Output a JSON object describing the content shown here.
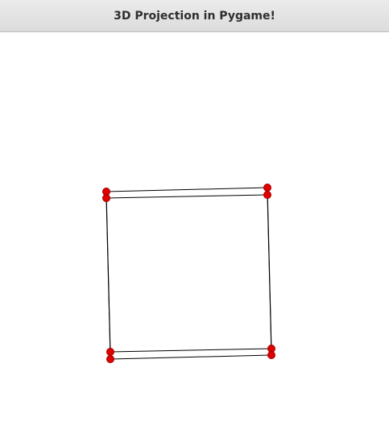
{
  "window": {
    "title": "3D Projection in Pygame!"
  },
  "scene": {
    "background_color": "#ffffff",
    "edge_color": "#000000",
    "vertex_color": "#e00000",
    "vertex_stroke_color": "#a00000",
    "vertices": [
      {
        "name": "v0"
      },
      {
        "name": "v1"
      },
      {
        "name": "v2"
      },
      {
        "name": "v3"
      },
      {
        "name": "v4"
      },
      {
        "name": "v5"
      },
      {
        "name": "v6"
      },
      {
        "name": "v7"
      }
    ],
    "edges": [
      [
        0,
        1
      ],
      [
        1,
        2
      ],
      [
        2,
        3
      ],
      [
        3,
        0
      ],
      [
        4,
        5
      ],
      [
        5,
        6
      ],
      [
        6,
        7
      ],
      [
        7,
        4
      ],
      [
        0,
        4
      ],
      [
        1,
        5
      ],
      [
        2,
        6
      ],
      [
        3,
        7
      ]
    ]
  }
}
